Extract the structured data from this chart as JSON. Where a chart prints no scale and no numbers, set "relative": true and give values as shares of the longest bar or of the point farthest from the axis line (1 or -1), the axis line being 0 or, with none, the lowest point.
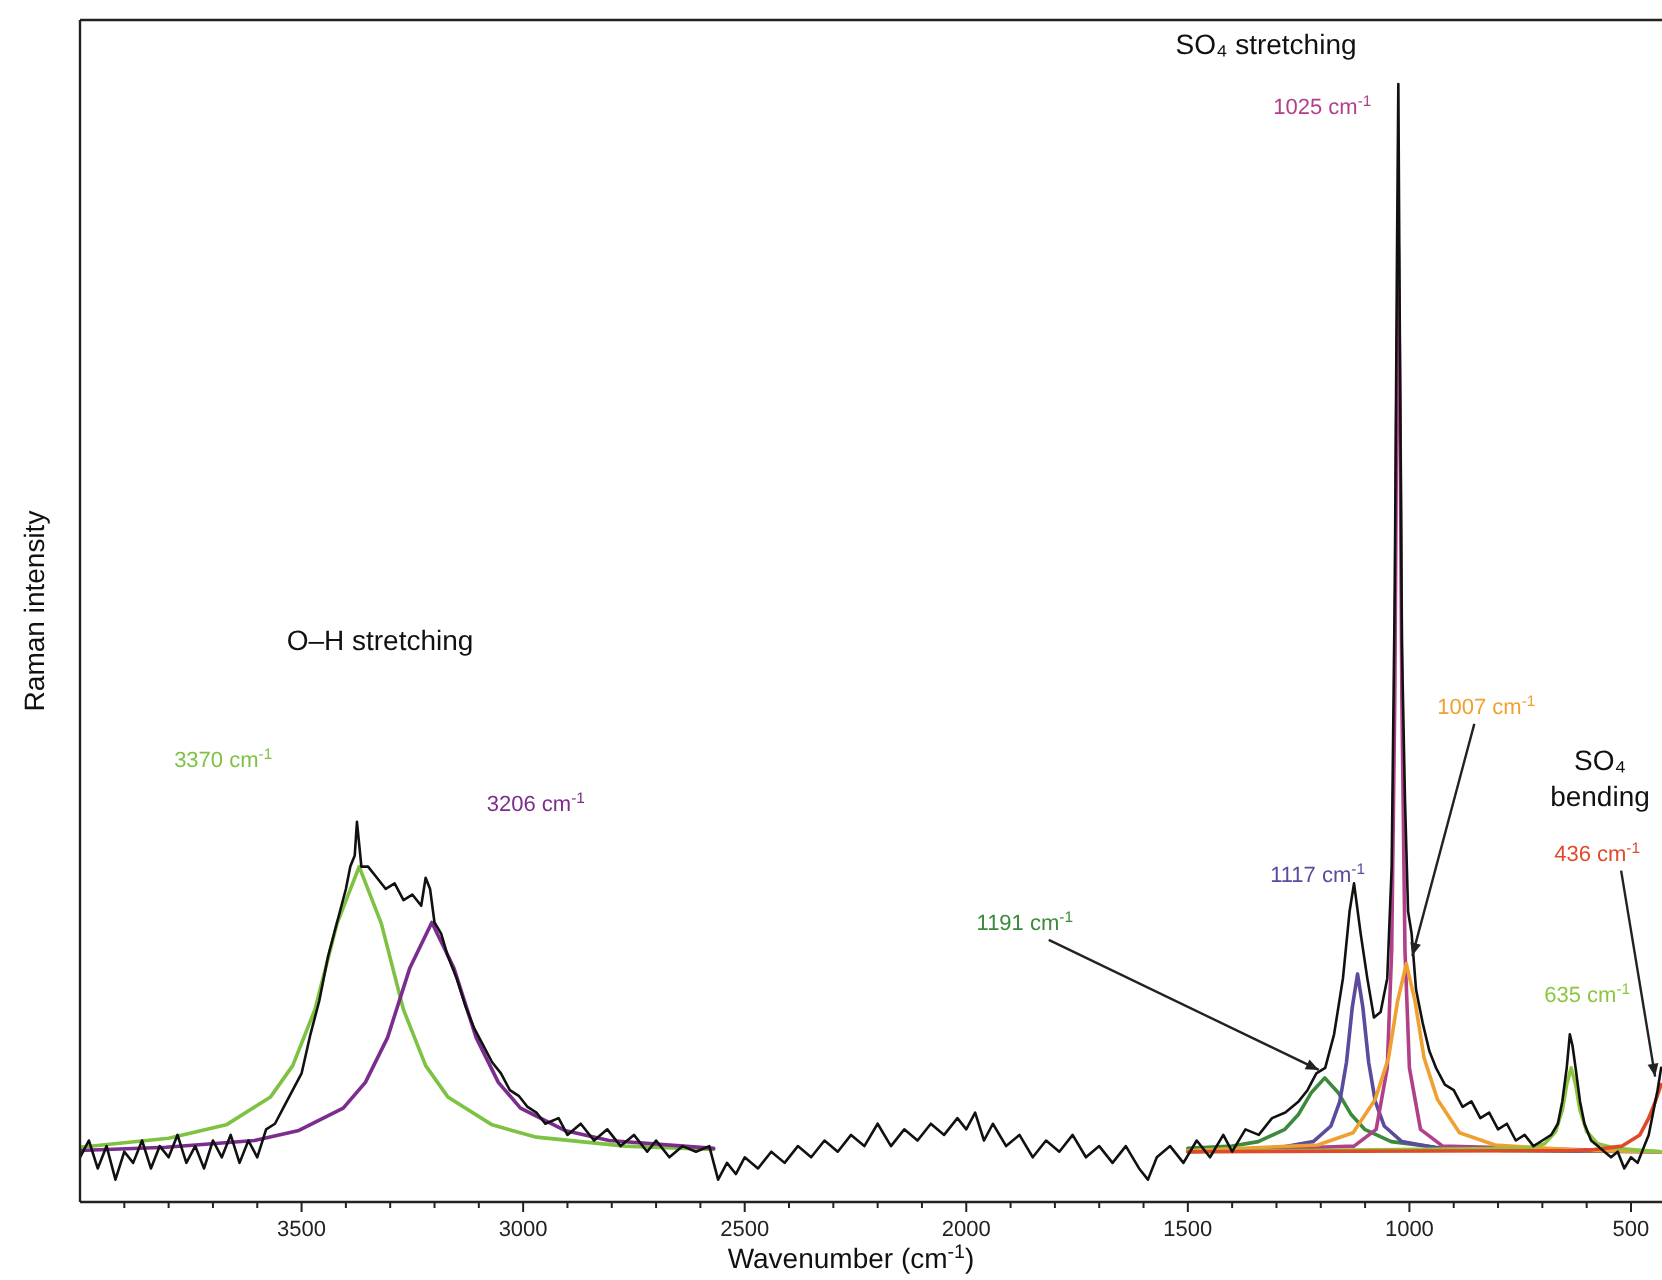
{
  "chart_data": {
    "type": "line",
    "xlabel": "Wavenumber (cm$^{-1}$)",
    "ylabel": "Raman intensity",
    "relative": true,
    "xlim": [
      4000,
      430
    ],
    "xticks": [
      {
        "value": 3900,
        "label": null
      },
      {
        "value": 3800,
        "label": null
      },
      {
        "value": 3700,
        "label": null
      },
      {
        "value": 3600,
        "label": null
      },
      3500,
      {
        "value": 3400,
        "label": null
      },
      {
        "value": 3300,
        "label": null
      },
      {
        "value": 3200,
        "label": null
      },
      {
        "value": 3100,
        "label": null
      },
      3000,
      {
        "value": 2900,
        "label": null
      },
      {
        "value": 2800,
        "label": null
      },
      {
        "value": 2700,
        "label": null
      },
      {
        "value": 2600,
        "label": null
      },
      2500,
      {
        "value": 2400,
        "label": null
      },
      {
        "value": 2300,
        "label": null
      },
      {
        "value": 2200,
        "label": null
      },
      {
        "value": 2100,
        "label": null
      },
      2000,
      {
        "value": 1900,
        "label": null
      },
      {
        "value": 1800,
        "label": null
      },
      {
        "value": 1700,
        "label": null
      },
      {
        "value": 1600,
        "label": null
      },
      1500,
      {
        "value": 1400,
        "label": null
      },
      {
        "value": 1300,
        "label": null
      },
      {
        "value": 1200,
        "label": null
      },
      {
        "value": 1100,
        "label": null
      },
      1000,
      {
        "value": 900,
        "label": null
      },
      {
        "value": 800,
        "label": null
      },
      {
        "value": 700,
        "label": null
      },
      {
        "value": 600,
        "label": null
      },
      500
    ],
    "annotations": [
      "O–H stretching",
      "SO₄ stretching",
      "SO₄ bending"
    ],
    "series": [
      {
        "color": "#111111",
        "x": [
          4000,
          3980,
          3960,
          3940,
          3920,
          3900,
          3880,
          3860,
          3840,
          3820,
          3800,
          3780,
          3760,
          3740,
          3720,
          3700,
          3680,
          3660,
          3640,
          3620,
          3600,
          3580,
          3560,
          3540,
          3520,
          3500,
          3480,
          3460,
          3440,
          3420,
          3400,
          3390,
          3380,
          3375,
          3365,
          3350,
          3330,
          3310,
          3290,
          3270,
          3250,
          3230,
          3220,
          3210,
          3200,
          3185,
          3170,
          3150,
          3130,
          3110,
          3090,
          3070,
          3050,
          3030,
          3010,
          2990,
          2970,
          2950,
          2920,
          2900,
          2870,
          2840,
          2810,
          2780,
          2750,
          2720,
          2700,
          2670,
          2640,
          2610,
          2580,
          2560,
          2540,
          2520,
          2500,
          2470,
          2440,
          2410,
          2380,
          2350,
          2320,
          2290,
          2260,
          2230,
          2200,
          2170,
          2140,
          2110,
          2080,
          2050,
          2020,
          2000,
          1980,
          1960,
          1940,
          1910,
          1880,
          1850,
          1820,
          1790,
          1760,
          1730,
          1700,
          1670,
          1640,
          1610,
          1590,
          1570,
          1540,
          1510,
          1480,
          1450,
          1420,
          1400,
          1370,
          1340,
          1310,
          1280,
          1250,
          1230,
          1210,
          1190,
          1170,
          1150,
          1135,
          1125,
          1110,
          1095,
          1080,
          1065,
          1050,
          1040,
          1033,
          1028,
          1025,
          1022,
          1017,
          1010,
          1003,
          995,
          985,
          970,
          955,
          940,
          920,
          900,
          880,
          860,
          840,
          820,
          800,
          780,
          760,
          740,
          720,
          700,
          680,
          665,
          655,
          645,
          638,
          632,
          625,
          615,
          605,
          590,
          575,
          560,
          545,
          530,
          515,
          500,
          485,
          470,
          460,
          450,
          440,
          432
        ],
        "values": [
          0.04,
          0.055,
          0.03,
          0.05,
          0.02,
          0.045,
          0.035,
          0.055,
          0.03,
          0.05,
          0.04,
          0.06,
          0.035,
          0.05,
          0.03,
          0.055,
          0.04,
          0.06,
          0.035,
          0.055,
          0.04,
          0.065,
          0.07,
          0.085,
          0.1,
          0.115,
          0.15,
          0.18,
          0.22,
          0.25,
          0.28,
          0.3,
          0.31,
          0.34,
          0.3,
          0.3,
          0.29,
          0.28,
          0.285,
          0.27,
          0.275,
          0.265,
          0.29,
          0.28,
          0.25,
          0.24,
          0.22,
          0.2,
          0.175,
          0.155,
          0.14,
          0.125,
          0.115,
          0.1,
          0.095,
          0.085,
          0.08,
          0.07,
          0.075,
          0.06,
          0.07,
          0.055,
          0.065,
          0.05,
          0.06,
          0.045,
          0.055,
          0.04,
          0.05,
          0.045,
          0.05,
          0.02,
          0.035,
          0.025,
          0.04,
          0.03,
          0.045,
          0.035,
          0.05,
          0.04,
          0.055,
          0.045,
          0.06,
          0.05,
          0.07,
          0.05,
          0.065,
          0.055,
          0.07,
          0.06,
          0.075,
          0.065,
          0.08,
          0.055,
          0.07,
          0.05,
          0.06,
          0.04,
          0.055,
          0.045,
          0.06,
          0.04,
          0.05,
          0.035,
          0.05,
          0.03,
          0.02,
          0.04,
          0.05,
          0.035,
          0.055,
          0.04,
          0.06,
          0.045,
          0.065,
          0.06,
          0.075,
          0.08,
          0.09,
          0.1,
          0.115,
          0.12,
          0.15,
          0.2,
          0.26,
          0.285,
          0.24,
          0.2,
          0.165,
          0.17,
          0.2,
          0.3,
          0.55,
          0.85,
          1.0,
          0.8,
          0.5,
          0.36,
          0.26,
          0.24,
          0.19,
          0.16,
          0.135,
          0.12,
          0.105,
          0.1,
          0.085,
          0.09,
          0.075,
          0.08,
          0.065,
          0.07,
          0.055,
          0.06,
          0.05,
          0.055,
          0.06,
          0.07,
          0.09,
          0.12,
          0.15,
          0.14,
          0.12,
          0.09,
          0.07,
          0.055,
          0.05,
          0.045,
          0.04,
          0.045,
          0.03,
          0.04,
          0.035,
          0.05,
          0.06,
          0.08,
          0.1,
          0.12
        ]
      },
      {
        "name": "3370 cm$^{-1}$",
        "color": "#7dc242",
        "x": [
          4000,
          3800,
          3670,
          3570,
          3520,
          3470,
          3420,
          3370,
          3320,
          3270,
          3220,
          3170,
          3070,
          2970,
          2770,
          2570
        ],
        "values": [
          0.049,
          0.057,
          0.069,
          0.094,
          0.122,
          0.172,
          0.249,
          0.3,
          0.249,
          0.172,
          0.122,
          0.094,
          0.069,
          0.058,
          0.05,
          0.047
        ]
      },
      {
        "name": "3206 cm$^{-1}$",
        "color": "#7b2d8e",
        "x": [
          4000,
          3806,
          3606,
          3506,
          3406,
          3356,
          3306,
          3256,
          3206,
          3156,
          3106,
          3056,
          3006,
          2906,
          2806,
          2570
        ],
        "values": [
          0.046,
          0.049,
          0.055,
          0.064,
          0.084,
          0.107,
          0.147,
          0.209,
          0.25,
          0.209,
          0.147,
          0.107,
          0.084,
          0.064,
          0.055,
          0.048
        ]
      },
      {
        "name": "1191 cm$^{-1}$",
        "color": "#3c8a3c",
        "x": [
          1500,
          1400,
          1341,
          1281,
          1251,
          1221,
          1191,
          1161,
          1131,
          1101,
          1041,
          941,
          791,
          432
        ],
        "values": [
          0.048,
          0.05,
          0.054,
          0.065,
          0.078,
          0.098,
          0.111,
          0.098,
          0.078,
          0.065,
          0.054,
          0.049,
          0.046,
          0.045
        ]
      },
      {
        "name": "1117 cm$^{-1}$",
        "color": "#5b4a9e",
        "x": [
          1500,
          1317,
          1217,
          1177,
          1157,
          1142,
          1129,
          1117,
          1105,
          1092,
          1077,
          1057,
          1017,
          917,
          432
        ],
        "values": [
          0.045,
          0.047,
          0.054,
          0.068,
          0.09,
          0.125,
          0.174,
          0.204,
          0.174,
          0.125,
          0.09,
          0.068,
          0.054,
          0.047,
          0.045
        ]
      },
      {
        "name": "1025 cm$^{-1}$",
        "color": "#b0408a",
        "x": [
          1500,
          1125,
          1075,
          1050,
          1040,
          1033,
          1029,
          1025,
          1021,
          1017,
          1010,
          1000,
          975,
          925,
          432
        ],
        "values": [
          0.045,
          0.05,
          0.065,
          0.12,
          0.225,
          0.45,
          0.693,
          0.855,
          0.693,
          0.45,
          0.225,
          0.12,
          0.065,
          0.05,
          0.045
        ]
      },
      {
        "name": "1007 cm$^{-1}$",
        "color": "#f0a030",
        "x": [
          1500,
          1207,
          1127,
          1077,
          1047,
          1027,
          1007,
          987,
          967,
          937,
          887,
          807,
          607,
          432
        ],
        "values": [
          0.046,
          0.051,
          0.062,
          0.092,
          0.129,
          0.179,
          0.213,
          0.179,
          0.129,
          0.092,
          0.062,
          0.051,
          0.046,
          0.045
        ]
      },
      {
        "name": "635 cm$^{-1}$",
        "color": "#8cc63f",
        "x": [
          1500,
          735,
          695,
          670,
          655,
          645,
          635,
          625,
          615,
          600,
          575,
          535,
          432
        ],
        "values": [
          0.045,
          0.048,
          0.052,
          0.063,
          0.082,
          0.105,
          0.12,
          0.105,
          0.082,
          0.063,
          0.052,
          0.048,
          0.045
        ]
      },
      {
        "name": "436 cm$^{-1}$",
        "color": "#e04a2a",
        "x": [
          1500,
          600,
          520,
          480,
          460,
          445,
          432
        ],
        "values": [
          0.045,
          0.046,
          0.05,
          0.06,
          0.075,
          0.09,
          0.105
        ]
      }
    ]
  }
}
